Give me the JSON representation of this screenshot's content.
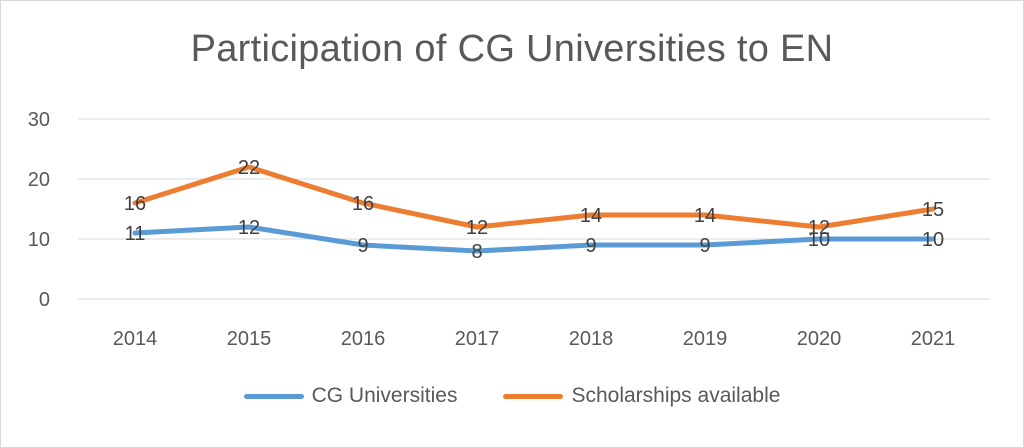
{
  "chart_data": {
    "type": "line",
    "title": "Participation of CG Universities to EN",
    "xlabel": "",
    "ylabel": "",
    "categories": [
      "2014",
      "2015",
      "2016",
      "2017",
      "2018",
      "2019",
      "2020",
      "2021"
    ],
    "ylim": [
      0,
      30
    ],
    "yticks": [
      0,
      10,
      20,
      30
    ],
    "grid": true,
    "legend": "bottom",
    "series": [
      {
        "name": "CG Universities",
        "color": "#5b9bd5",
        "values": [
          11,
          12,
          9,
          8,
          9,
          9,
          10,
          10
        ]
      },
      {
        "name": "Scholarships available",
        "color": "#ed7d31",
        "values": [
          16,
          22,
          16,
          12,
          14,
          14,
          12,
          15
        ]
      }
    ]
  }
}
